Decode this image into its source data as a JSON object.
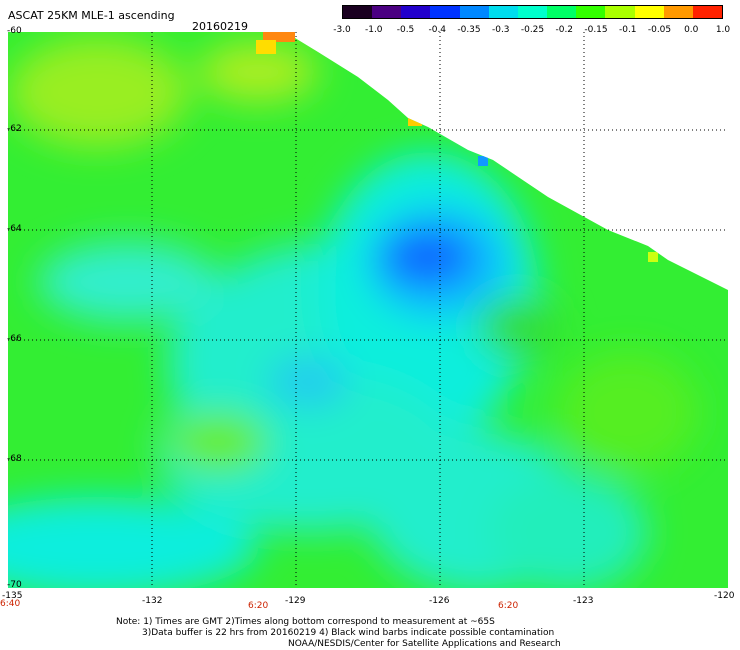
{
  "header": {
    "product": "ASCAT 25KM MLE-1 ascending",
    "date": "20160219"
  },
  "colorbar": {
    "labels": [
      "-3.0",
      "-1.0",
      "-0.5",
      "-0.4",
      "-0.35",
      "-0.3",
      "-0.25",
      "-0.2",
      "-0.15",
      "-0.1",
      "-0.05",
      "0.0",
      "1.0"
    ],
    "colors": [
      "#1a0020",
      "#4b0082",
      "#2200cc",
      "#0033ff",
      "#0088ff",
      "#00ddee",
      "#00ffcc",
      "#00ff66",
      "#33ff00",
      "#aaff00",
      "#ffff00",
      "#ff9900",
      "#ff2200"
    ]
  },
  "axes": {
    "lat_labels": [
      "-60",
      "-62",
      "-64",
      "-66",
      "-68",
      "-70"
    ],
    "lon_labels": [
      "-135",
      "-132",
      "-129",
      "-126",
      "-123",
      "-120"
    ],
    "time_labels": [
      "6:40",
      "6:20",
      "6:20"
    ]
  },
  "notes": {
    "line1": "Note: 1) Times are GMT 2)Times along bottom correspond to measurement at ~65S",
    "line2": "3)Data buffer is 22 hrs from 20160219 4) Black wind barbs indicate possible contamination",
    "line3": "NOAA/NESDIS/Center for Satellite Applications and Research"
  }
}
